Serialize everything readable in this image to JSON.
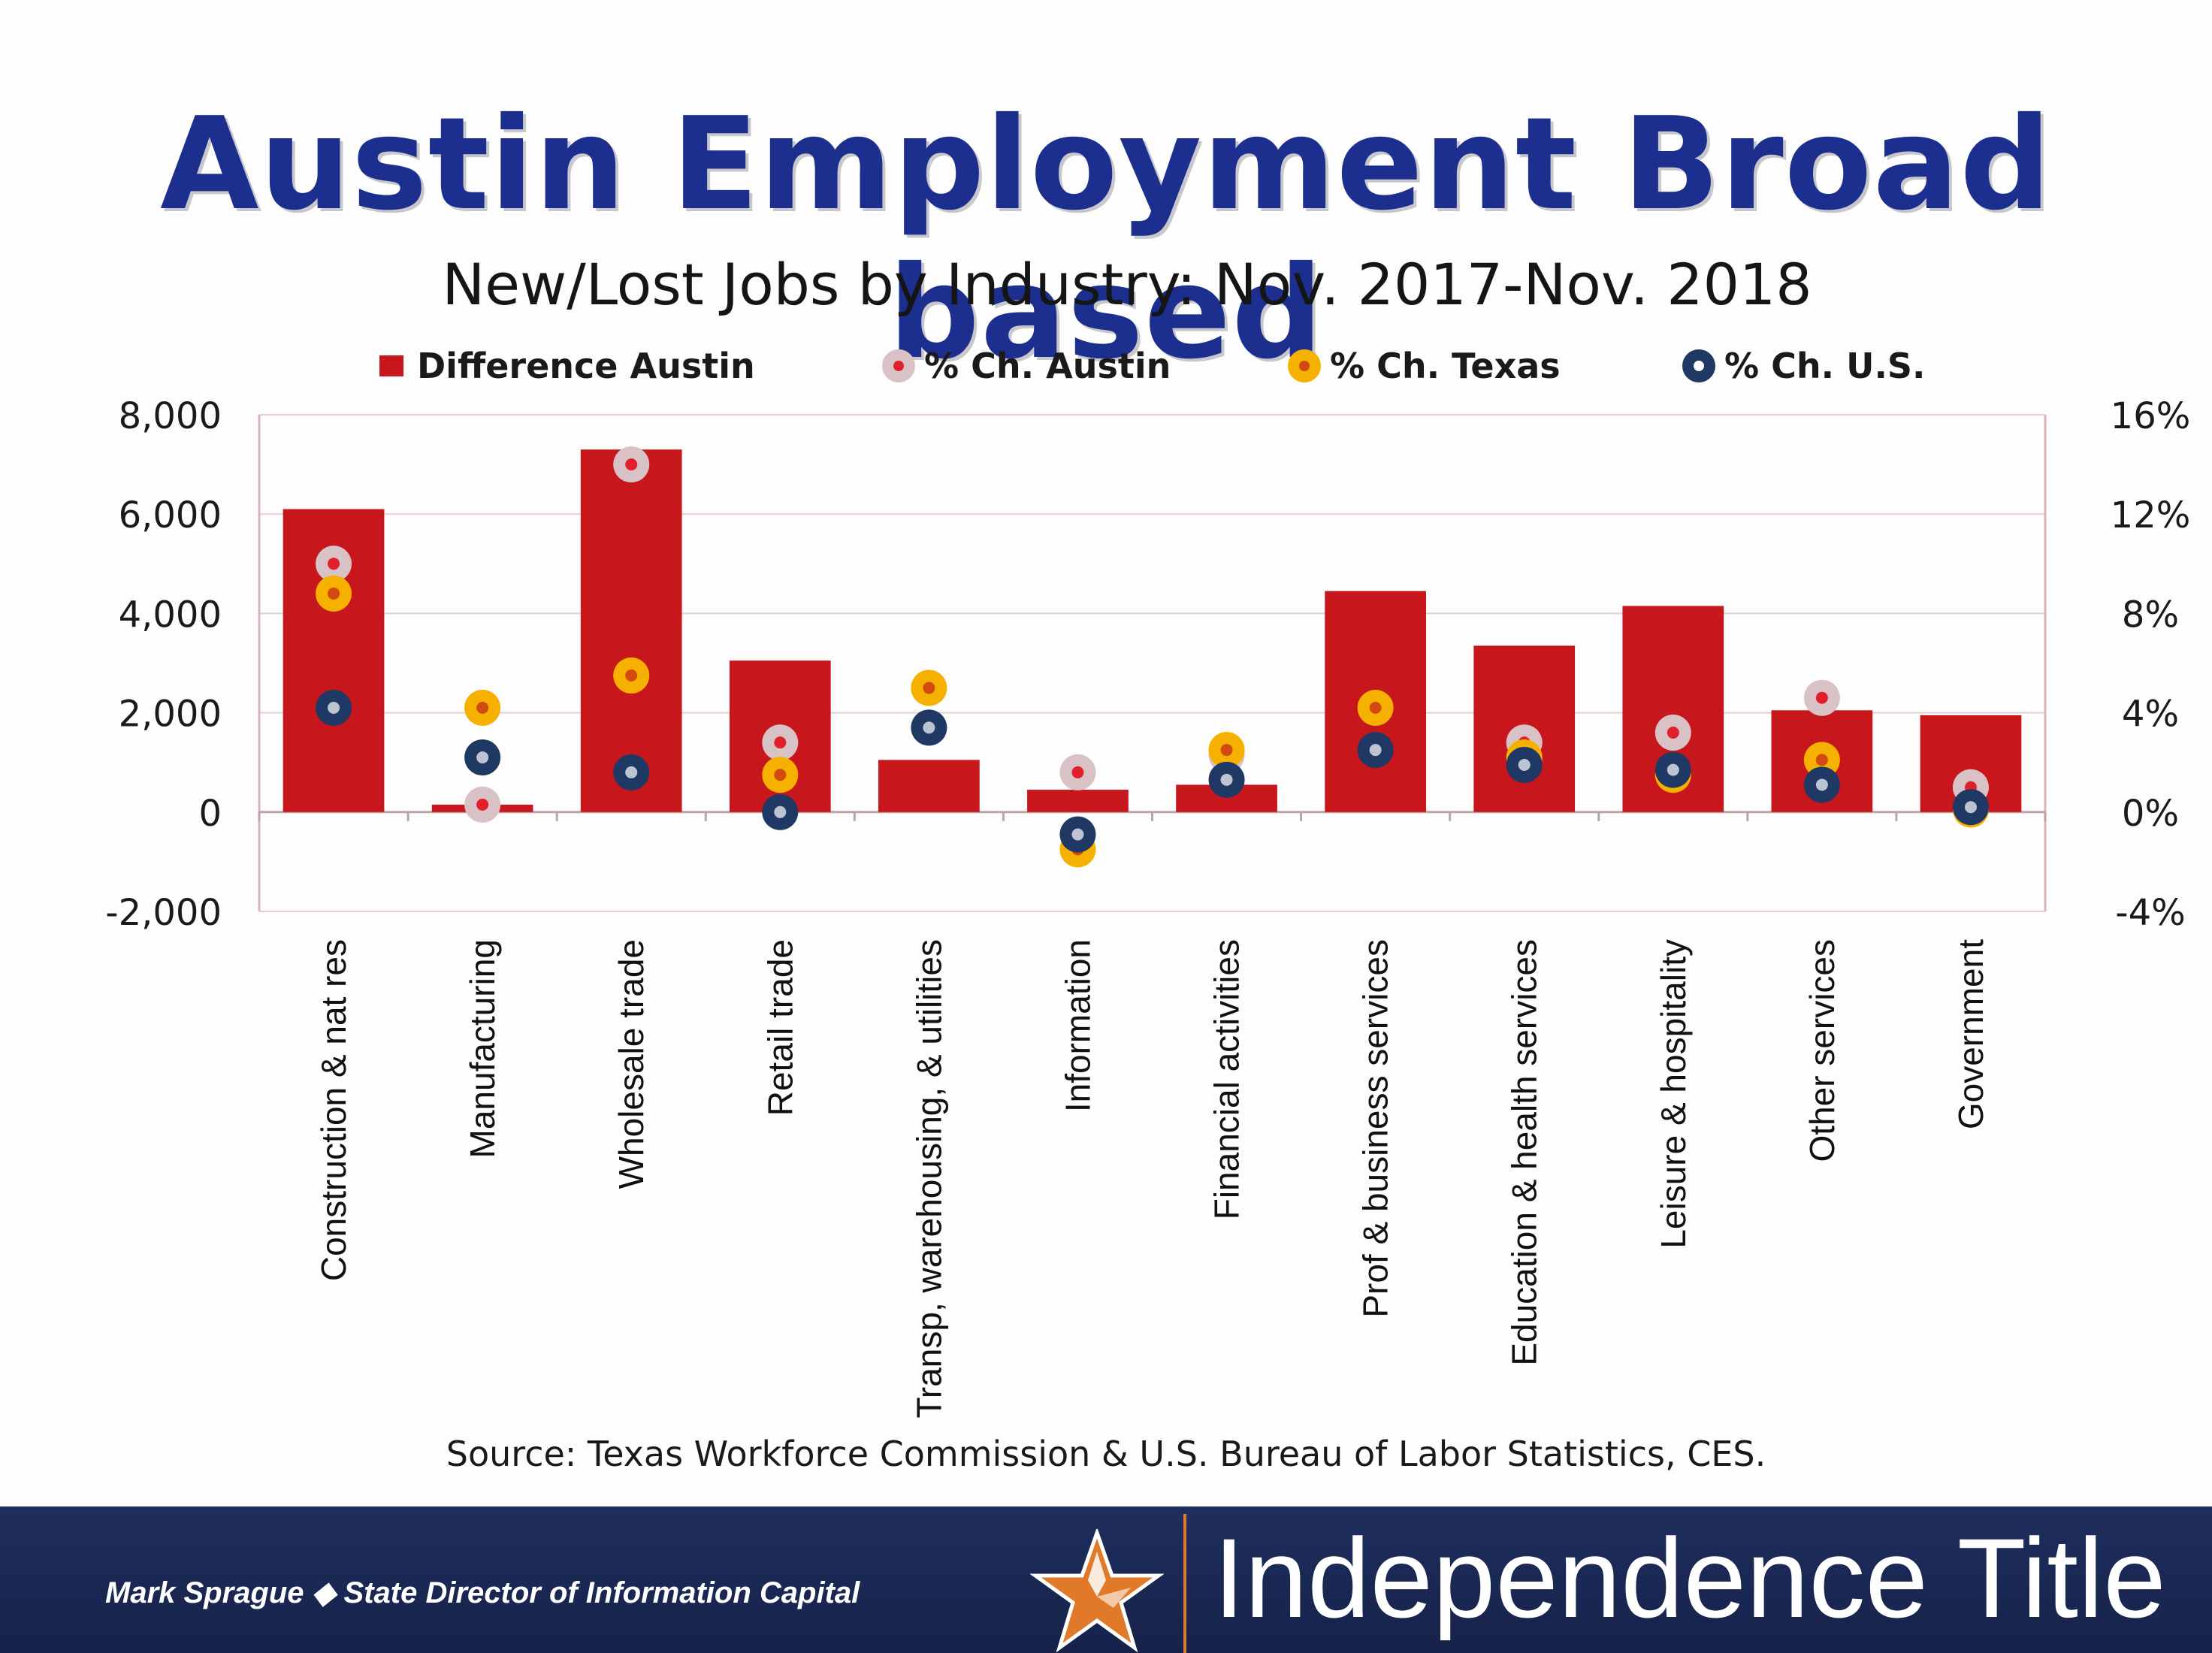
{
  "slide": {
    "title": "Austin Employment Broad based",
    "source": "Source: Texas Workforce Commission & U.S. Bureau of Labor Statistics, CES."
  },
  "footer": {
    "presenter": "Mark Sprague ◆ State Director of Information Capital",
    "brand": "Independence Title"
  },
  "colors": {
    "bar": "#c8161d",
    "austin_marker": "#d9c2c6",
    "texas_marker": "#f5b000",
    "us_marker": "#1f3864",
    "title": "#1c2f8f"
  },
  "chart_data": {
    "type": "bar",
    "title": "New/Lost Jobs by Industry: Nov. 2017-Nov. 2018",
    "categories": [
      "Construction & nat res",
      "Manufacturing",
      "Wholesale trade",
      "Retail trade",
      "Transp, warehousing, & utilities",
      "Information",
      "Financial activities",
      "Prof & business services",
      "Education & health services",
      "Leisure & hospitality",
      "Other services",
      "Government"
    ],
    "series": [
      {
        "name": "Difference Austin",
        "type": "bar",
        "axis": "left",
        "values": [
          6100,
          150,
          7300,
          3050,
          1050,
          450,
          550,
          4450,
          3350,
          4150,
          2050,
          1950
        ]
      },
      {
        "name": "% Ch. Austin",
        "type": "scatter",
        "axis": "right",
        "values": [
          10.0,
          0.3,
          14.0,
          2.8,
          null,
          1.6,
          2.3,
          null,
          2.8,
          3.2,
          4.6,
          1.0
        ]
      },
      {
        "name": "% Ch. Texas",
        "type": "scatter",
        "axis": "right",
        "values": [
          8.8,
          4.2,
          5.5,
          1.5,
          5.0,
          -1.5,
          2.5,
          4.2,
          2.2,
          1.5,
          2.1,
          0.1
        ]
      },
      {
        "name": "% Ch. U.S.",
        "type": "scatter",
        "axis": "right",
        "values": [
          4.2,
          2.2,
          1.6,
          0.0,
          3.4,
          -0.9,
          1.3,
          2.5,
          1.9,
          1.7,
          1.1,
          0.2
        ]
      }
    ],
    "yleft": {
      "lim": [
        -2000,
        8000
      ],
      "ticks": [
        -2000,
        0,
        2000,
        4000,
        6000,
        8000
      ],
      "tick_labels": [
        "-2,000",
        "0",
        "2,000",
        "4,000",
        "6,000",
        "8,000"
      ]
    },
    "yright": {
      "lim": [
        -4,
        16
      ],
      "ticks": [
        -4,
        0,
        4,
        8,
        12,
        16
      ],
      "tick_labels": [
        "-4%",
        "0%",
        "4%",
        "8%",
        "12%",
        "16%"
      ]
    },
    "grid": true,
    "legend_position": "top"
  }
}
